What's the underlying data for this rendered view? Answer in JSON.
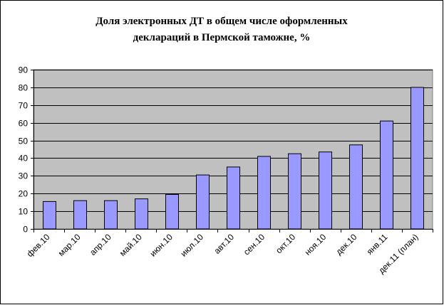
{
  "chart_data": {
    "type": "bar",
    "title_lines": [
      "Доля электронных ДТ в общем числе оформленных",
      "деклараций в Пермской таможне, %"
    ],
    "categories": [
      "фев.10",
      "мар.10",
      "апр.10",
      "май.10",
      "июн.10",
      "июл.10",
      "авт.10",
      "сен.10",
      "окт.10",
      "ноя.10",
      "дек.10",
      "янв.11",
      "дек.11 (план)"
    ],
    "values": [
      15.5,
      16,
      16,
      17,
      19.5,
      30.5,
      35,
      41,
      42.5,
      43.5,
      47.5,
      61,
      80
    ],
    "ylim": [
      0,
      90
    ],
    "yticks": [
      0,
      10,
      20,
      30,
      40,
      50,
      60,
      70,
      80,
      90
    ],
    "grid": true,
    "legend": "none",
    "colors": {
      "bar_fill": "#9999FF",
      "bar_stroke": "#000000",
      "plot_background": "#C0C0C0",
      "gridline": "#000000"
    }
  }
}
